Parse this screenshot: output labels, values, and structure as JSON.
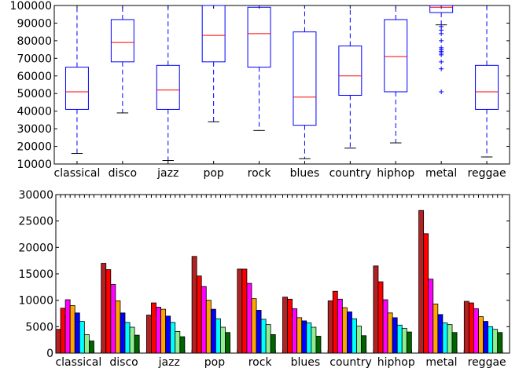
{
  "chart_data": [
    {
      "type": "box",
      "categories": [
        "classical",
        "disco",
        "jazz",
        "pop",
        "rock",
        "blues",
        "country",
        "hiphop",
        "metal",
        "reggae"
      ],
      "ylim": [
        10000,
        100000
      ],
      "yticks": [
        10000,
        20000,
        30000,
        40000,
        50000,
        60000,
        70000,
        80000,
        90000,
        100000
      ],
      "ytick_labels": [
        "10000",
        "20000",
        "30000",
        "40000",
        "50000",
        "60000",
        "70000",
        "80000",
        "90000",
        "100000"
      ],
      "box_color": "#0000ff",
      "median_color": "#ff0000",
      "boxes": [
        {
          "whisker_low": 16000,
          "q1": 41000,
          "median": 51000,
          "q3": 65000,
          "whisker_high": 100000,
          "outliers": []
        },
        {
          "whisker_low": 39000,
          "q1": 68000,
          "median": 79000,
          "q3": 92000,
          "whisker_high": 100000,
          "outliers": []
        },
        {
          "whisker_low": 12000,
          "q1": 41000,
          "median": 52000,
          "q3": 66000,
          "whisker_high": 100000,
          "outliers": []
        },
        {
          "whisker_low": 34000,
          "q1": 68000,
          "median": 83000,
          "q3": 100000,
          "whisker_high": 100000,
          "outliers": []
        },
        {
          "whisker_low": 29000,
          "q1": 65000,
          "median": 84000,
          "q3": 99000,
          "whisker_high": 100000,
          "outliers": []
        },
        {
          "whisker_low": 13000,
          "q1": 32000,
          "median": 48000,
          "q3": 85000,
          "whisker_high": 100000,
          "outliers": []
        },
        {
          "whisker_low": 19000,
          "q1": 49000,
          "median": 60000,
          "q3": 77000,
          "whisker_high": 100000,
          "outliers": []
        },
        {
          "whisker_low": 22000,
          "q1": 51000,
          "median": 71000,
          "q3": 92000,
          "whisker_high": 100000,
          "outliers": []
        },
        {
          "whisker_low": 89000,
          "q1": 96000,
          "median": 99000,
          "q3": 100000,
          "whisker_high": 100000,
          "outliers": [
            88000,
            86000,
            84000,
            80000,
            76000,
            75000,
            74000,
            73000,
            72000,
            68000,
            64000,
            51000
          ]
        },
        {
          "whisker_low": 14000,
          "q1": 41000,
          "median": 51000,
          "q3": 66000,
          "whisker_high": 100000,
          "outliers": []
        }
      ]
    },
    {
      "type": "bar",
      "categories": [
        "classical",
        "disco",
        "jazz",
        "pop",
        "rock",
        "blues",
        "country",
        "hiphop",
        "metal",
        "reggae"
      ],
      "ylim": [
        0,
        30000
      ],
      "yticks": [
        0,
        5000,
        10000,
        15000,
        20000,
        25000,
        30000
      ],
      "ytick_labels": [
        "0",
        "5000",
        "10000",
        "15000",
        "20000",
        "25000",
        "30000"
      ],
      "series_colors": [
        "#b22222",
        "#ff0000",
        "#ff00ff",
        "#ffa500",
        "#0000ff",
        "#00ffff",
        "#90ee90",
        "#006400"
      ],
      "series": [
        {
          "values": [
            4500,
            17000,
            7200,
            18300,
            15900,
            10600,
            9900,
            16500,
            27000,
            9800
          ]
        },
        {
          "values": [
            8500,
            15800,
            9500,
            14600,
            15900,
            10200,
            11700,
            13500,
            22600,
            9500
          ]
        },
        {
          "values": [
            10100,
            13000,
            8700,
            12600,
            13200,
            8400,
            10200,
            10100,
            14000,
            8400
          ]
        },
        {
          "values": [
            9000,
            9900,
            8300,
            10000,
            10300,
            6700,
            8600,
            7600,
            9300,
            6900
          ]
        },
        {
          "values": [
            7600,
            7600,
            7000,
            8300,
            8100,
            6100,
            7800,
            6700,
            7300,
            6000
          ]
        },
        {
          "values": [
            6000,
            5800,
            5800,
            6500,
            6400,
            5700,
            6500,
            5300,
            5700,
            5000
          ]
        },
        {
          "values": [
            3500,
            4900,
            4100,
            4900,
            5400,
            4900,
            5100,
            4700,
            5400,
            4500
          ]
        },
        {
          "values": [
            2300,
            3400,
            3100,
            3900,
            3500,
            3200,
            3300,
            4000,
            3900,
            3900
          ]
        }
      ]
    }
  ]
}
